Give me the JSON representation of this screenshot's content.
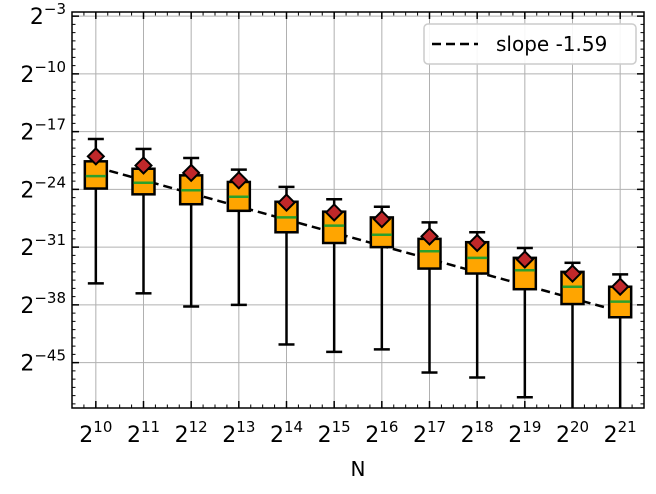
{
  "chart_data": {
    "type": "box",
    "title": "",
    "xlabel": "N",
    "ylabel": "",
    "x_scale": "log2",
    "y_scale": "log2",
    "grid": true,
    "xlim_exp": [
      9.5,
      21.5
    ],
    "ylim_exp": [
      -50.5,
      -2.5
    ],
    "x_ticks": [
      {
        "base": "2",
        "exp": "10"
      },
      {
        "base": "2",
        "exp": "11"
      },
      {
        "base": "2",
        "exp": "12"
      },
      {
        "base": "2",
        "exp": "13"
      },
      {
        "base": "2",
        "exp": "14"
      },
      {
        "base": "2",
        "exp": "15"
      },
      {
        "base": "2",
        "exp": "16"
      },
      {
        "base": "2",
        "exp": "17"
      },
      {
        "base": "2",
        "exp": "18"
      },
      {
        "base": "2",
        "exp": "19"
      },
      {
        "base": "2",
        "exp": "20"
      },
      {
        "base": "2",
        "exp": "21"
      }
    ],
    "y_ticks": [
      {
        "base": "2",
        "exp": "−3"
      },
      {
        "base": "2",
        "exp": "−10"
      },
      {
        "base": "2",
        "exp": "−17"
      },
      {
        "base": "2",
        "exp": "−24"
      },
      {
        "base": "2",
        "exp": "−31"
      },
      {
        "base": "2",
        "exp": "−38"
      },
      {
        "base": "2",
        "exp": "−45"
      }
    ],
    "x_tick_exps": [
      10,
      11,
      12,
      13,
      14,
      15,
      16,
      17,
      18,
      19,
      20,
      21
    ],
    "y_tick_exps": [
      -3,
      -10,
      -17,
      -24,
      -31,
      -38,
      -45
    ],
    "boxes": [
      {
        "x_exp": 10,
        "whislo": -35.4,
        "q1": -23.9,
        "med": -22.4,
        "q3": -20.6,
        "whishi": -17.9,
        "mean": -20.0
      },
      {
        "x_exp": 11,
        "whislo": -36.6,
        "q1": -24.6,
        "med": -23.2,
        "q3": -21.5,
        "whishi": -19.1,
        "mean": -21.1
      },
      {
        "x_exp": 12,
        "whislo": -38.2,
        "q1": -25.8,
        "med": -24.1,
        "q3": -22.3,
        "whishi": -20.2,
        "mean": -22.0
      },
      {
        "x_exp": 13,
        "whislo": -38.0,
        "q1": -26.6,
        "med": -24.9,
        "q3": -23.1,
        "whishi": -21.6,
        "mean": -22.9
      },
      {
        "x_exp": 14,
        "whislo": -42.8,
        "q1": -29.2,
        "med": -27.4,
        "q3": -25.5,
        "whishi": -23.7,
        "mean": -25.6
      },
      {
        "x_exp": 15,
        "whislo": -43.7,
        "q1": -30.5,
        "med": -28.4,
        "q3": -26.7,
        "whishi": -25.2,
        "mean": -26.8
      },
      {
        "x_exp": 16,
        "whislo": -43.4,
        "q1": -31.0,
        "med": -29.5,
        "q3": -27.4,
        "whishi": -26.1,
        "mean": -27.6
      },
      {
        "x_exp": 17,
        "whislo": -46.2,
        "q1": -33.6,
        "med": -31.5,
        "q3": -30.0,
        "whishi": -28.0,
        "mean": -29.7
      },
      {
        "x_exp": 18,
        "whislo": -46.8,
        "q1": -34.2,
        "med": -32.3,
        "q3": -30.4,
        "whishi": -29.2,
        "mean": -30.5
      },
      {
        "x_exp": 19,
        "whislo": -49.2,
        "q1": -36.1,
        "med": -33.8,
        "q3": -32.3,
        "whishi": -31.1,
        "mean": -32.5
      },
      {
        "x_exp": 20,
        "whislo": -51.3,
        "q1": -37.9,
        "med": -35.8,
        "q3": -34.0,
        "whishi": -32.9,
        "mean": -34.2
      },
      {
        "x_exp": 21,
        "whislo": -52.4,
        "q1": -39.5,
        "med": -37.6,
        "q3": -35.8,
        "whishi": -34.3,
        "mean": -35.8
      }
    ],
    "fit_line": {
      "name": "slope -1.59",
      "slope": -1.59,
      "x_exp_range": [
        10,
        21
      ],
      "y_exp_start": -21.3,
      "y_exp_end": -38.8
    },
    "legend": {
      "entries": [
        "slope -1.59"
      ],
      "placement": "top-right"
    },
    "colors": {
      "box_fill": "#FFA500",
      "box_edge": "#000000",
      "median": "#2CA02C",
      "mean_marker": "#C0282A",
      "mean_edge": "#000000",
      "fit_line": "#000000",
      "grid": "#B0B0B0"
    }
  }
}
